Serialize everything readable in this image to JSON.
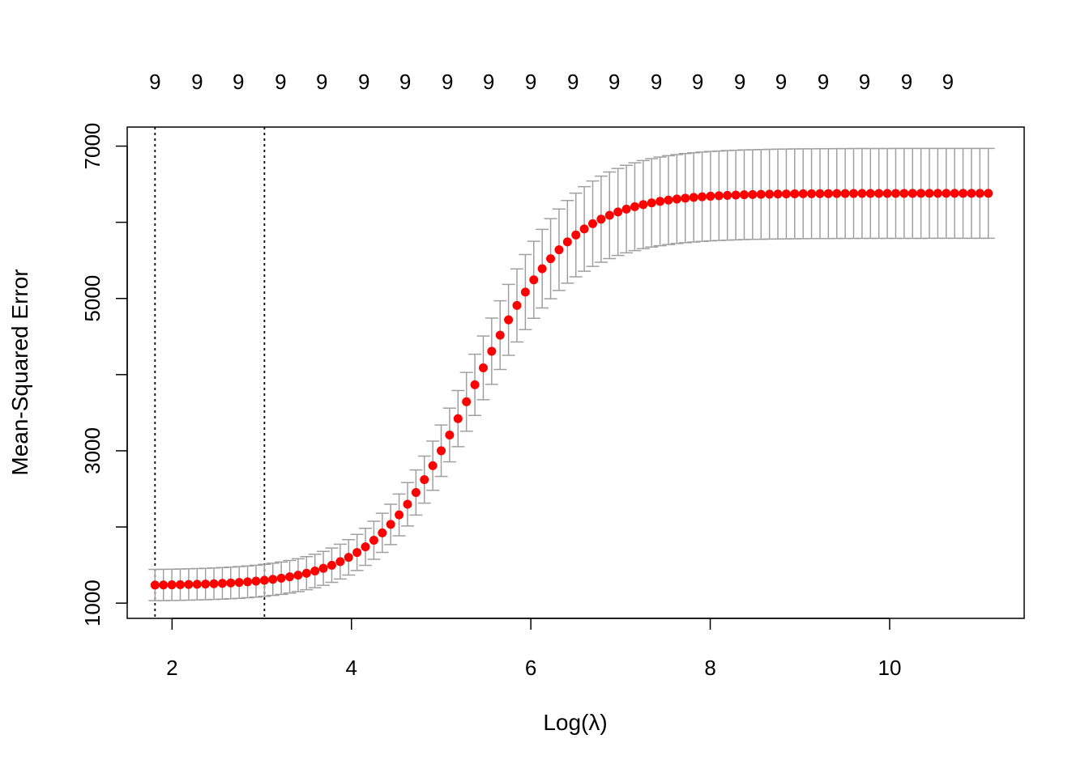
{
  "chart_data": {
    "type": "scatter",
    "title": "",
    "xlabel": "Log(λ)",
    "ylabel": "Mean-Squared Error",
    "xlim": [
      1.5,
      11.5
    ],
    "ylim": [
      800,
      7250
    ],
    "x_ticks": [
      {
        "value": 2,
        "label": "2"
      },
      {
        "value": 4,
        "label": "4"
      },
      {
        "value": 6,
        "label": "6"
      },
      {
        "value": 8,
        "label": "8"
      },
      {
        "value": 10,
        "label": "10"
      }
    ],
    "y_ticks": [
      {
        "value": 1000,
        "label": "1000"
      },
      {
        "value": 2000,
        "label": ""
      },
      {
        "value": 3000,
        "label": "3000"
      },
      {
        "value": 4000,
        "label": ""
      },
      {
        "value": 5000,
        "label": "5000"
      },
      {
        "value": 6000,
        "label": ""
      },
      {
        "value": 7000,
        "label": "7000"
      }
    ],
    "top_axis": {
      "labels": [
        {
          "x": 1.81,
          "label": "9"
        },
        {
          "x": 2.28,
          "label": "9"
        },
        {
          "x": 2.74,
          "label": "9"
        },
        {
          "x": 3.21,
          "label": "9"
        },
        {
          "x": 3.67,
          "label": "9"
        },
        {
          "x": 4.14,
          "label": "9"
        },
        {
          "x": 4.6,
          "label": "9"
        },
        {
          "x": 5.07,
          "label": "9"
        },
        {
          "x": 5.53,
          "label": "9"
        },
        {
          "x": 6.0,
          "label": "9"
        },
        {
          "x": 6.47,
          "label": "9"
        },
        {
          "x": 6.93,
          "label": "9"
        },
        {
          "x": 7.4,
          "label": "9"
        },
        {
          "x": 7.86,
          "label": "9"
        },
        {
          "x": 8.33,
          "label": "9"
        },
        {
          "x": 8.79,
          "label": "9"
        },
        {
          "x": 9.26,
          "label": "9"
        },
        {
          "x": 9.72,
          "label": "9"
        },
        {
          "x": 10.19,
          "label": "9"
        },
        {
          "x": 10.65,
          "label": "9"
        }
      ]
    },
    "vlines": [
      1.81,
      3.03
    ],
    "series": [
      {
        "x_start": 1.81,
        "x_end": 11.1,
        "n_points": 100,
        "mid_y": 3810,
        "x_center": 5.35,
        "span_y": 5250,
        "steepness": 1.0,
        "mse_min": 1230,
        "mse_max": 6380,
        "se_min": 205,
        "se_max": 590,
        "point_color": "#ff0000",
        "errorbar_color": "#a0a0a0"
      }
    ]
  }
}
